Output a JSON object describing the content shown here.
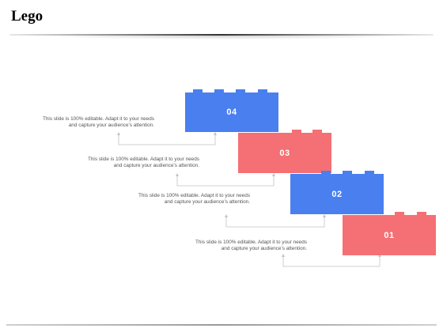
{
  "title": "Lego",
  "colors": {
    "blue": "#4a7ff0",
    "red": "#f47074",
    "connector": "#bfc3c9"
  },
  "steps": [
    {
      "label": "04",
      "color": "blue",
      "text1": "This slide is 100% editable. Adapt it to your needs",
      "text2": "and capture your audience’s attention."
    },
    {
      "label": "03",
      "color": "red",
      "text1": "This slide is 100% editable. Adapt it to your needs",
      "text2": "and capture your audience’s attention."
    },
    {
      "label": "02",
      "color": "blue",
      "text1": "This slide is 100% editable. Adapt it to your needs",
      "text2": "and capture your audience’s attention."
    },
    {
      "label": "01",
      "color": "red",
      "text1": "This slide is 100% editable. Adapt it to your needs",
      "text2": "and capture your audience’s attention."
    }
  ]
}
